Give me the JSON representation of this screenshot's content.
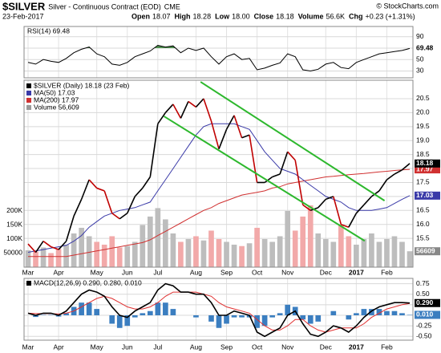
{
  "header": {
    "title": "$SILVER",
    "subtitle": "Silver - Continuous Contract (EOD)",
    "exchange": "CME",
    "source": "© StockCharts.com",
    "date": "23-Feb-2017",
    "quote": [
      [
        "Open",
        "18.07"
      ],
      [
        "High",
        "18.28"
      ],
      [
        "Low",
        "18.00"
      ],
      [
        "Close",
        "18.18"
      ],
      [
        "Volume",
        "56.6K"
      ],
      [
        "Chg",
        "+0.23 (+1.31%)"
      ]
    ]
  },
  "x_axis": {
    "xlim": [
      0,
      50
    ],
    "xticks": [
      {
        "value": 0,
        "label": "Mar"
      },
      {
        "value": 4,
        "label": "Apr"
      },
      {
        "value": 9,
        "label": "May"
      },
      {
        "value": 13,
        "label": "Jun"
      },
      {
        "value": 17,
        "label": "Jul"
      },
      {
        "value": 22,
        "label": "Aug"
      },
      {
        "value": 26,
        "label": "Sep"
      },
      {
        "value": 30,
        "label": "Oct"
      },
      {
        "value": 34,
        "label": "Nov"
      },
      {
        "value": 39,
        "label": "Dec"
      },
      {
        "value": 43,
        "label": "2017"
      },
      {
        "value": 47,
        "label": "Feb"
      }
    ]
  },
  "chart_data": [
    {
      "type": "rsi",
      "legend": "RSI(14) 69.48",
      "ylim": [
        18,
        108
      ],
      "yticks": [
        90,
        70,
        50,
        30
      ],
      "overbought": 70,
      "grid": true,
      "fill_color": "#4f8f4f",
      "series": [
        {
          "color": "#000000",
          "values": [
            45,
            42,
            50,
            47,
            45,
            52,
            62,
            68,
            72,
            60,
            55,
            42,
            40,
            45,
            55,
            60,
            65,
            75,
            72,
            74,
            62,
            70,
            66,
            70,
            55,
            42,
            55,
            60,
            50,
            52,
            32,
            35,
            40,
            44,
            60,
            55,
            32,
            30,
            33,
            42,
            45,
            36,
            34,
            45,
            50,
            55,
            60,
            62,
            64,
            66,
            69.48
          ]
        }
      ]
    },
    {
      "type": "price",
      "legend": [
        {
          "text": "$SILVER (Daily) 18.18 (23 Feb)",
          "color": "#000000"
        },
        {
          "text": "MA(50) 17.03",
          "color": "#3a3aa8"
        },
        {
          "text": "MA(200) 17.97",
          "color": "#d03030"
        },
        {
          "text": "Volume 56,609",
          "color": "#999999"
        }
      ],
      "ylim": [
        14.47,
        21.16
      ],
      "yticks": [
        20.5,
        {
          "value": 20,
          "label": "20.0"
        },
        19.5,
        {
          "value": 19,
          "label": "19.0"
        },
        18.5,
        {
          "value": 18,
          "label": "18.0"
        },
        17.5,
        {
          "value": 17,
          "label": "17.0"
        },
        16.5,
        {
          "value": 16,
          "label": "16.0"
        },
        15.5
      ],
      "grid": true,
      "price": {
        "up_color": "#000000",
        "down_color": "#c00000",
        "label_color": "#000000",
        "values": [
          15.3,
          15.0,
          15.4,
          15.2,
          15.1,
          15.4,
          16.3,
          16.9,
          17.6,
          17.3,
          17.2,
          16.4,
          16.2,
          16.4,
          17.0,
          17.3,
          17.7,
          19.6,
          20.0,
          20.3,
          19.8,
          20.4,
          20.2,
          20.5,
          19.7,
          18.7,
          19.4,
          19.9,
          19.1,
          19.2,
          17.5,
          17.5,
          17.7,
          17.8,
          18.6,
          18.3,
          16.7,
          16.5,
          16.6,
          16.9,
          17.0,
          16.0,
          15.9,
          16.4,
          16.7,
          17.0,
          17.2,
          17.6,
          17.8,
          17.95,
          18.18
        ]
      },
      "ma50": {
        "color": "#3a3aa8",
        "values": [
          15.0,
          15.05,
          15.1,
          15.15,
          15.2,
          15.25,
          15.4,
          15.6,
          15.9,
          16.1,
          16.3,
          16.4,
          16.5,
          16.55,
          16.6,
          16.7,
          16.8,
          17.2,
          17.6,
          18.0,
          18.4,
          18.8,
          19.2,
          19.5,
          19.6,
          19.6,
          19.6,
          19.6,
          19.5,
          19.4,
          19.0,
          18.6,
          18.3,
          18.0,
          17.9,
          17.8,
          17.6,
          17.4,
          17.2,
          17.0,
          16.9,
          16.8,
          16.6,
          16.5,
          16.5,
          16.5,
          16.55,
          16.6,
          16.75,
          16.9,
          17.03
        ]
      },
      "ma200": {
        "color": "#d03030",
        "values": [
          14.85,
          14.85,
          14.85,
          14.85,
          14.85,
          14.85,
          14.9,
          14.95,
          15.0,
          15.05,
          15.1,
          15.15,
          15.2,
          15.25,
          15.3,
          15.35,
          15.45,
          15.6,
          15.75,
          15.9,
          16.05,
          16.2,
          16.35,
          16.5,
          16.6,
          16.75,
          16.85,
          16.95,
          17.05,
          17.1,
          17.15,
          17.2,
          17.3,
          17.35,
          17.45,
          17.5,
          17.55,
          17.6,
          17.65,
          17.7,
          17.72,
          17.75,
          17.78,
          17.8,
          17.82,
          17.85,
          17.88,
          17.9,
          17.93,
          17.95,
          17.97
        ]
      },
      "volume": {
        "up_color": "#bdbdbd",
        "down_color": "#f2a9a9",
        "label_color": "#888888",
        "ylim": [
          0,
          665000
        ],
        "yticks": [
          {
            "value": 200000,
            "label": "200K"
          },
          {
            "value": 150000,
            "label": "150K"
          },
          {
            "value": 100000,
            "label": "100K"
          },
          50000
        ],
        "values": [
          60000,
          55000,
          70000,
          50000,
          65000,
          80000,
          120000,
          140000,
          110000,
          90000,
          80000,
          110000,
          70000,
          75000,
          90000,
          150000,
          180000,
          210000,
          170000,
          120000,
          90000,
          100000,
          110000,
          95000,
          130000,
          100000,
          90000,
          80000,
          75000,
          85000,
          140000,
          100000,
          90000,
          110000,
          200000,
          130000,
          180000,
          220000,
          120000,
          100000,
          90000,
          150000,
          110000,
          80000,
          100000,
          120000,
          90000,
          100000,
          110000,
          90000,
          56609
        ]
      },
      "trendlines": [
        {
          "x": [
            22.6,
            46.7
          ],
          "y": [
            21.1,
            16.85
          ],
          "color": "#2db82d"
        },
        {
          "x": [
            17.8,
            44.1
          ],
          "y": [
            19.87,
            15.41
          ],
          "color": "#2db82d"
        }
      ]
    },
    {
      "type": "macd",
      "legend": "MACD(12,26,9) 0.290, 0.280, 0.010",
      "ylim": [
        -0.59,
        0.875
      ],
      "yticks": [
        0.75,
        {
          "value": 0.5,
          "label": "0.50"
        },
        0.25,
        {
          "value": 0,
          "label": "0.00"
        },
        -0.25,
        {
          "value": -0.5,
          "label": "-0.50"
        }
      ],
      "grid": true,
      "macd": {
        "color": "#000000",
        "end_label": "0.290",
        "values": [
          0.05,
          0.0,
          0.05,
          0.05,
          0.0,
          0.1,
          0.3,
          0.5,
          0.6,
          0.55,
          0.45,
          0.2,
          0.0,
          -0.05,
          0.1,
          0.2,
          0.3,
          0.6,
          0.75,
          0.7,
          0.55,
          0.55,
          0.5,
          0.5,
          0.3,
          0.0,
          0.0,
          0.1,
          0.05,
          0.0,
          -0.4,
          -0.5,
          -0.4,
          -0.3,
          0.0,
          0.1,
          -0.2,
          -0.45,
          -0.5,
          -0.4,
          -0.25,
          -0.3,
          -0.4,
          -0.25,
          -0.05,
          0.1,
          0.2,
          0.25,
          0.3,
          0.3,
          0.29
        ]
      },
      "signal": {
        "color": "#e03030",
        "values": [
          0.05,
          0.04,
          0.04,
          0.04,
          0.03,
          0.05,
          0.1,
          0.2,
          0.3,
          0.4,
          0.45,
          0.4,
          0.3,
          0.2,
          0.15,
          0.15,
          0.2,
          0.3,
          0.45,
          0.55,
          0.55,
          0.55,
          0.55,
          0.5,
          0.45,
          0.3,
          0.2,
          0.15,
          0.1,
          0.05,
          -0.1,
          -0.25,
          -0.35,
          -0.35,
          -0.25,
          -0.1,
          -0.1,
          -0.25,
          -0.35,
          -0.4,
          -0.35,
          -0.3,
          -0.3,
          -0.3,
          -0.2,
          -0.05,
          0.05,
          0.15,
          0.2,
          0.25,
          0.28
        ]
      },
      "histogram": {
        "color": "#3b7ec0",
        "end_label": "0.010",
        "values": [
          0,
          -0.04,
          0.01,
          0.01,
          -0.03,
          0.05,
          0.2,
          0.3,
          0.3,
          0.15,
          0,
          -0.2,
          -0.3,
          -0.25,
          -0.05,
          0.05,
          0.1,
          0.3,
          0.3,
          0.15,
          0,
          0,
          -0.05,
          0,
          -0.15,
          -0.3,
          -0.2,
          -0.05,
          -0.05,
          -0.05,
          -0.3,
          -0.25,
          -0.05,
          0.05,
          0.25,
          0.2,
          -0.1,
          -0.2,
          -0.15,
          0,
          0.1,
          0,
          -0.1,
          0.05,
          0.15,
          0.15,
          0.15,
          0.1,
          0.1,
          0.05,
          0.01
        ]
      }
    }
  ]
}
